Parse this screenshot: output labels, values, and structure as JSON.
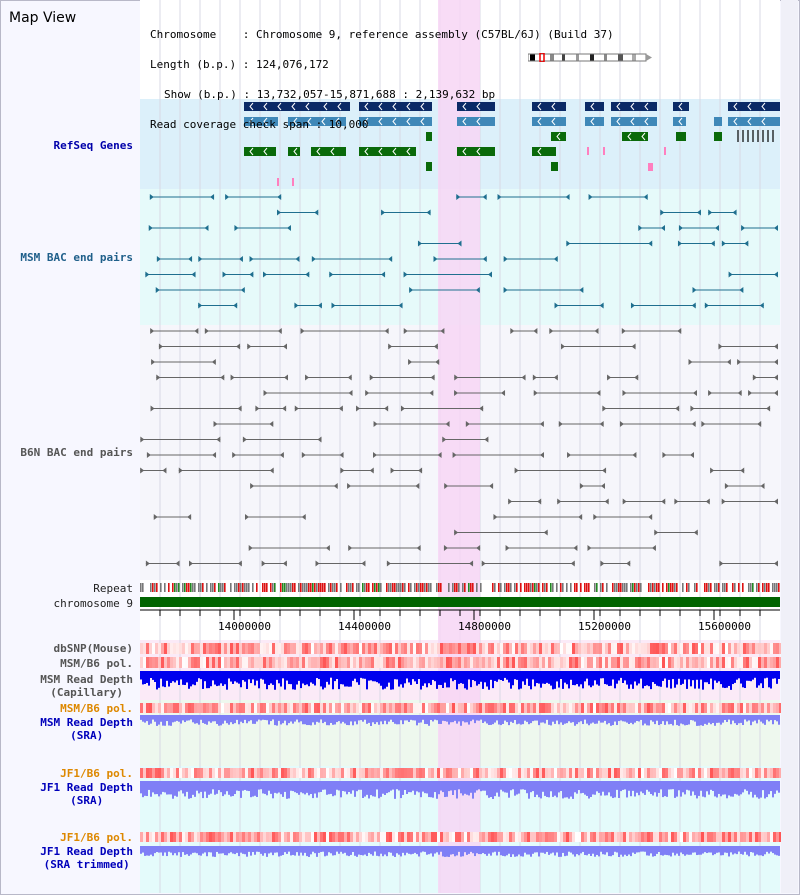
{
  "title": "Map View",
  "info": {
    "line1": "Chromosome    : Chromosome 9, reference assembly (C57BL/6J) (Build 37)",
    "line2": "Length (b.p.) : 124,076,172",
    "line3": "Show (b.p.) : 13,732,057-15,871,688 : 2,139,632 bp",
    "line4": "Read coverage check span : 10,000"
  },
  "tracks": {
    "refseq": "RefSeq Genes",
    "msm_bac": "MSM BAC end pairs",
    "b6n_bac": "B6N BAC end pairs",
    "repeat": "Repeat",
    "chromosome": "chromosome 9",
    "dbsnp": "dbSNP(Mouse)",
    "msm_b6_pol": "MSM/B6 pol.",
    "msm_depth_cap_1": "MSM Read Depth",
    "msm_depth_cap_2": "(Capillary)",
    "msm_b6_pol_sra": "MSM/B6 pol.",
    "msm_depth_sra_1": "MSM Read Depth",
    "msm_depth_sra_2": "(SRA)",
    "jf1_b6_pol": "JF1/B6 pol.",
    "jf1_depth_sra_1": "JF1 Read Depth",
    "jf1_depth_sra_2": "(SRA)",
    "jf1_b6_pol_trim": "JF1/B6 pol.",
    "jf1_depth_trim_1": "JF1 Read Depth",
    "jf1_depth_trim_2": "(SRA trimmed)"
  },
  "axis": {
    "ticks": [
      "14000000",
      "14400000",
      "14800000",
      "15200000",
      "15600000"
    ]
  },
  "colors": {
    "highlight": "#f7d6f4",
    "refseq_bg": "#dcf0fa",
    "msm_bg": "#e6fafa",
    "gene_dark": "#0a2a66",
    "gene_mid": "#3f88b8",
    "gene_green": "#0a6a0a",
    "bac_msm": "#1f6f8f",
    "bac_b6n": "#666666",
    "chrom": "#006400",
    "depth_blue": "#0000ee",
    "depth_light": "#7f7ff6"
  }
}
